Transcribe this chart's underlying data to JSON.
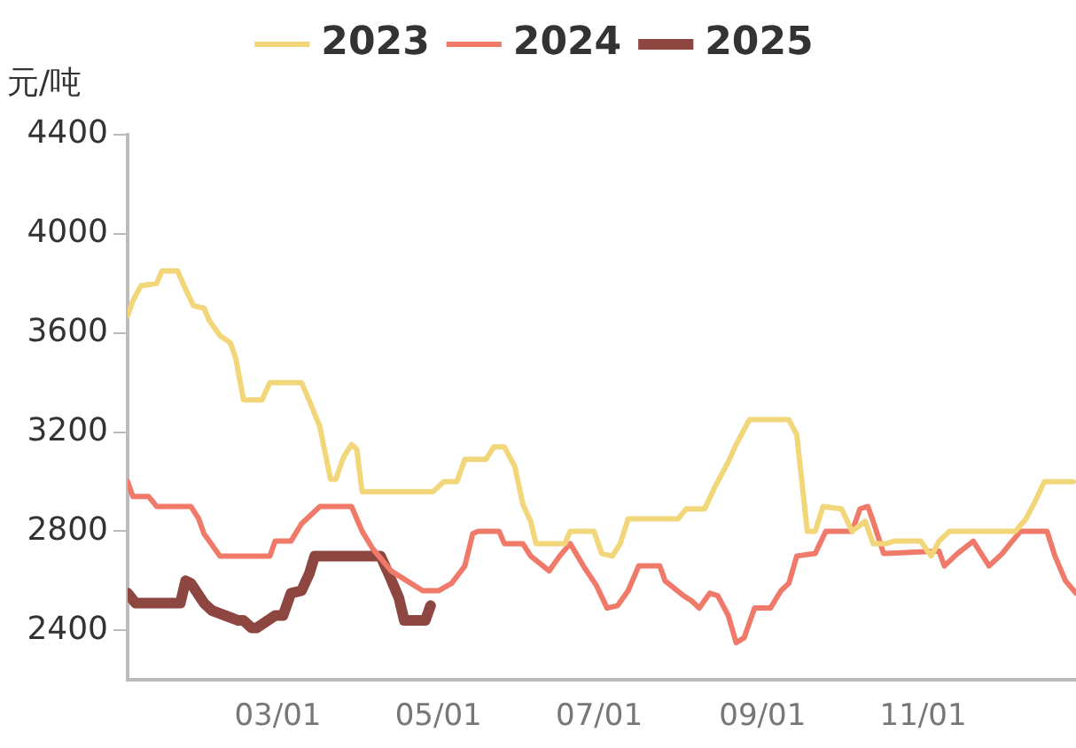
{
  "chart_data": {
    "type": "line",
    "ylabel": "元/吨",
    "xlim": [
      "--01-03",
      "--12-29"
    ],
    "xticks": [
      {
        "value": "--03-01",
        "label": "03/01"
      },
      {
        "value": "--05-01",
        "label": "05/01"
      },
      {
        "value": "--07-01",
        "label": "07/01"
      },
      {
        "value": "--09-01",
        "label": "09/01"
      },
      {
        "value": "--11-01",
        "label": "11/01"
      }
    ],
    "ylim": [
      2200,
      4400
    ],
    "yticks": [
      2400,
      2800,
      3200,
      3600,
      4000,
      4400
    ],
    "grid": false,
    "legend": "top",
    "marker": "none",
    "line_style": "solid",
    "series": [
      {
        "name": "2023",
        "color": "#f2d67a",
        "x": [
          "--01-03",
          "--01-05",
          "--01-08",
          "--01-14",
          "--01-16",
          "--01-22",
          "--01-24",
          "--01-28",
          "--02-01",
          "--02-03",
          "--02-07",
          "--02-11",
          "--02-13",
          "--02-16",
          "--02-23",
          "--02-26",
          "--03-10",
          "--03-14",
          "--03-17",
          "--03-21",
          "--03-23",
          "--03-26",
          "--03-29",
          "--03-31",
          "--04-02",
          "--04-29",
          "--05-03",
          "--05-08",
          "--05-11",
          "--05-19",
          "--05-22",
          "--05-26",
          "--05-30",
          "--06-02",
          "--06-05",
          "--06-07",
          "--06-18",
          "--06-20",
          "--06-29",
          "--07-02",
          "--07-06",
          "--07-09",
          "--07-12",
          "--07-31",
          "--08-03",
          "--08-10",
          "--08-14",
          "--08-19",
          "--08-22",
          "--08-27",
          "--09-11",
          "--09-14",
          "--09-18",
          "--09-21",
          "--09-24",
          "--10-01",
          "--10-05",
          "--10-10",
          "--10-13",
          "--10-18",
          "--10-21",
          "--10-31",
          "--11-04",
          "--11-07",
          "--11-11",
          "--12-06",
          "--12-10",
          "--12-13",
          "--12-17",
          "--12-28"
        ],
        "values": [
          3670,
          3730,
          3790,
          3800,
          3850,
          3850,
          3800,
          3710,
          3700,
          3650,
          3590,
          3560,
          3500,
          3330,
          3330,
          3400,
          3400,
          3300,
          3220,
          3010,
          3010,
          3100,
          3150,
          3130,
          2960,
          2960,
          3000,
          3000,
          3090,
          3090,
          3140,
          3140,
          3060,
          2910,
          2840,
          2750,
          2750,
          2800,
          2800,
          2710,
          2700,
          2750,
          2850,
          2850,
          2890,
          2890,
          2980,
          3080,
          3150,
          3250,
          3250,
          3190,
          2800,
          2800,
          2900,
          2890,
          2800,
          2840,
          2750,
          2750,
          2760,
          2760,
          2700,
          2760,
          2800,
          2800,
          2850,
          2910,
          3000,
          3000
        ]
      },
      {
        "name": "2024",
        "color": "#f07a6a",
        "x": [
          "--01-03",
          "--01-05",
          "--01-11",
          "--01-14",
          "--01-27",
          "--01-30",
          "--02-01",
          "--02-03",
          "--02-07",
          "--02-26",
          "--02-28",
          "--03-06",
          "--03-10",
          "--03-17",
          "--03-29",
          "--04-02",
          "--04-06",
          "--04-13",
          "--04-19",
          "--04-25",
          "--05-01",
          "--05-06",
          "--05-11",
          "--05-14",
          "--05-16",
          "--05-24",
          "--05-26",
          "--06-02",
          "--06-05",
          "--06-12",
          "--06-16",
          "--06-20",
          "--06-25",
          "--06-30",
          "--07-04",
          "--07-08",
          "--07-12",
          "--07-16",
          "--07-24",
          "--07-26",
          "--08-02",
          "--08-05",
          "--08-08",
          "--08-12",
          "--08-15",
          "--08-19",
          "--08-22",
          "--08-25",
          "--08-29",
          "--09-04",
          "--09-08",
          "--09-11",
          "--09-14",
          "--09-21",
          "--09-25",
          "--10-05",
          "--10-08",
          "--10-11",
          "--10-13",
          "--10-17",
          "--11-07",
          "--11-09",
          "--11-14",
          "--11-20",
          "--11-23",
          "--11-26",
          "--12-01",
          "--12-04",
          "--12-08",
          "--12-18",
          "--12-21",
          "--12-25",
          "--12-29"
        ],
        "values": [
          3000,
          2940,
          2940,
          2900,
          2900,
          2850,
          2790,
          2760,
          2700,
          2700,
          2760,
          2760,
          2830,
          2900,
          2900,
          2800,
          2730,
          2640,
          2600,
          2560,
          2560,
          2590,
          2660,
          2790,
          2800,
          2800,
          2750,
          2750,
          2700,
          2640,
          2700,
          2750,
          2660,
          2580,
          2490,
          2500,
          2560,
          2660,
          2660,
          2600,
          2540,
          2520,
          2490,
          2550,
          2540,
          2460,
          2350,
          2370,
          2490,
          2490,
          2560,
          2590,
          2700,
          2710,
          2800,
          2800,
          2890,
          2900,
          2840,
          2710,
          2720,
          2660,
          2710,
          2760,
          2710,
          2660,
          2710,
          2750,
          2800,
          2800,
          2700,
          2600,
          2550
        ]
      },
      {
        "name": "2025",
        "color": "#8e4740",
        "x": [
          "--01-03",
          "--01-06",
          "--01-23",
          "--01-25",
          "--01-27",
          "--02-01",
          "--02-04",
          "--02-14",
          "--02-16",
          "--02-19",
          "--02-21",
          "--02-28",
          "--03-03",
          "--03-06",
          "--03-10",
          "--03-13",
          "--03-15",
          "--04-09",
          "--04-12",
          "--04-16",
          "--04-18",
          "--04-26",
          "--04-28"
        ],
        "values": [
          2550,
          2510,
          2510,
          2600,
          2590,
          2510,
          2480,
          2440,
          2440,
          2410,
          2410,
          2460,
          2460,
          2550,
          2560,
          2630,
          2700,
          2700,
          2630,
          2530,
          2440,
          2440,
          2500
        ]
      }
    ]
  }
}
